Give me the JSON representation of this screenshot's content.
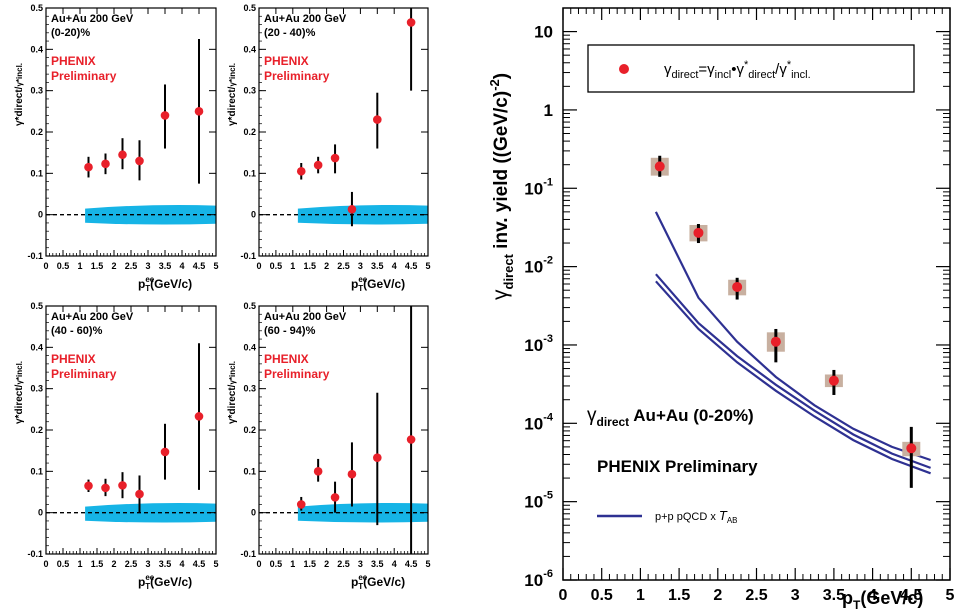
{
  "chart_data": [
    {
      "type": "scatter",
      "title": "Au+Au 200 GeV",
      "subtitle": "(0-20)%",
      "annotation": [
        "PHENIX",
        "Preliminary"
      ],
      "ylabel_main": "γ*direct",
      "ylabel_sep": "/",
      "ylabel_sub": "γ*incl.",
      "xlabel_main": "p",
      "xlabel_sub": "T",
      "xlabel_sup": "ee",
      "xlabel_unit": "(GeV/c)",
      "xlim": [
        0,
        5
      ],
      "ylim": [
        -0.1,
        0.5
      ],
      "x_ticks": [
        "0",
        "0.5",
        "1",
        "1.5",
        "2",
        "2.5",
        "3",
        "3.5",
        "4",
        "4.5",
        "5"
      ],
      "y_ticks": [
        "-0.1",
        "0",
        "0.1",
        "0.2",
        "0.3",
        "0.4",
        "0.5"
      ],
      "points": [
        {
          "x": 1.25,
          "y": 0.115,
          "lo": 0.09,
          "hi": 0.14
        },
        {
          "x": 1.75,
          "y": 0.123,
          "lo": 0.098,
          "hi": 0.148
        },
        {
          "x": 2.25,
          "y": 0.145,
          "lo": 0.11,
          "hi": 0.185
        },
        {
          "x": 2.75,
          "y": 0.13,
          "lo": 0.083,
          "hi": 0.18
        },
        {
          "x": 3.5,
          "y": 0.24,
          "lo": 0.16,
          "hi": 0.315
        },
        {
          "x": 4.5,
          "y": 0.25,
          "lo": 0.075,
          "hi": 0.425
        }
      ],
      "band": {
        "x": [
          1.0,
          5.0
        ],
        "half": 0.022
      }
    },
    {
      "type": "scatter",
      "title": "Au+Au 200 GeV",
      "subtitle": "(20 - 40)%",
      "annotation": [
        "PHENIX",
        "Preliminary"
      ],
      "ylabel_main": "γ*direct",
      "ylabel_sep": "/",
      "ylabel_sub": "γ*incl.",
      "xlabel_main": "p",
      "xlabel_sub": "T",
      "xlabel_sup": "ee",
      "xlabel_unit": "(GeV/c)",
      "xlim": [
        0,
        5
      ],
      "ylim": [
        -0.1,
        0.5
      ],
      "x_ticks": [
        "0",
        "0.5",
        "1",
        "1.5",
        "2",
        "2.5",
        "3",
        "3.5",
        "4",
        "4.5",
        "5"
      ],
      "y_ticks": [
        "-0.1",
        "0",
        "0.1",
        "0.2",
        "0.3",
        "0.4",
        "0.5"
      ],
      "points": [
        {
          "x": 1.25,
          "y": 0.105,
          "lo": 0.085,
          "hi": 0.125
        },
        {
          "x": 1.75,
          "y": 0.12,
          "lo": 0.1,
          "hi": 0.14
        },
        {
          "x": 2.25,
          "y": 0.137,
          "lo": 0.1,
          "hi": 0.17
        },
        {
          "x": 2.75,
          "y": 0.013,
          "lo": -0.028,
          "hi": 0.055
        },
        {
          "x": 3.5,
          "y": 0.23,
          "lo": 0.16,
          "hi": 0.295
        },
        {
          "x": 4.5,
          "y": 0.465,
          "lo": 0.3,
          "hi": 0.5
        }
      ],
      "band": {
        "x": [
          1.0,
          5.0
        ],
        "half": 0.022
      }
    },
    {
      "type": "scatter",
      "title": "Au+Au 200 GeV",
      "subtitle": "(40 - 60)%",
      "annotation": [
        "PHENIX",
        "Preliminary"
      ],
      "ylabel_main": "γ*direct",
      "ylabel_sep": "/",
      "ylabel_sub": "γ*incl.",
      "xlabel_main": "p",
      "xlabel_sub": "T",
      "xlabel_sup": "ee",
      "xlabel_unit": "(GeV/c)",
      "xlim": [
        0,
        5
      ],
      "ylim": [
        -0.1,
        0.5
      ],
      "x_ticks": [
        "0",
        "0.5",
        "1",
        "1.5",
        "2",
        "2.5",
        "3",
        "3.5",
        "4",
        "4.5",
        "5"
      ],
      "y_ticks": [
        "-0.1",
        "0",
        "0.1",
        "0.2",
        "0.3",
        "0.4",
        "0.5"
      ],
      "points": [
        {
          "x": 1.25,
          "y": 0.065,
          "lo": 0.05,
          "hi": 0.08
        },
        {
          "x": 1.75,
          "y": 0.06,
          "lo": 0.04,
          "hi": 0.082
        },
        {
          "x": 2.25,
          "y": 0.066,
          "lo": 0.035,
          "hi": 0.098
        },
        {
          "x": 2.75,
          "y": 0.045,
          "lo": 0.0,
          "hi": 0.09
        },
        {
          "x": 3.5,
          "y": 0.147,
          "lo": 0.08,
          "hi": 0.215
        },
        {
          "x": 4.5,
          "y": 0.233,
          "lo": 0.055,
          "hi": 0.41
        }
      ],
      "band": {
        "x": [
          1.0,
          5.0
        ],
        "half": 0.022
      }
    },
    {
      "type": "scatter",
      "title": "Au+Au 200 GeV",
      "subtitle": "(60 - 94)%",
      "annotation": [
        "PHENIX",
        "Preliminary"
      ],
      "ylabel_main": "γ*direct",
      "ylabel_sep": "/",
      "ylabel_sub": "γ*incl.",
      "xlabel_main": "p",
      "xlabel_sub": "T",
      "xlabel_sup": "ee",
      "xlabel_unit": "(GeV/c)",
      "xlim": [
        0,
        5
      ],
      "ylim": [
        -0.1,
        0.5
      ],
      "x_ticks": [
        "0",
        "0.5",
        "1",
        "1.5",
        "2",
        "2.5",
        "3",
        "3.5",
        "4",
        "4.5",
        "5"
      ],
      "y_ticks": [
        "-0.1",
        "0",
        "0.1",
        "0.2",
        "0.3",
        "0.4",
        "0.5"
      ],
      "points": [
        {
          "x": 1.25,
          "y": 0.02,
          "lo": 0.005,
          "hi": 0.038
        },
        {
          "x": 1.75,
          "y": 0.1,
          "lo": 0.075,
          "hi": 0.13
        },
        {
          "x": 2.25,
          "y": 0.037,
          "lo": 0.0,
          "hi": 0.075
        },
        {
          "x": 2.75,
          "y": 0.093,
          "lo": 0.015,
          "hi": 0.17
        },
        {
          "x": 3.5,
          "y": 0.133,
          "lo": -0.03,
          "hi": 0.29
        },
        {
          "x": 4.5,
          "y": 0.177,
          "lo": -0.1,
          "hi": 0.5
        }
      ],
      "band": {
        "x": [
          1.0,
          5.0
        ],
        "half": 0.022
      }
    },
    {
      "type": "scatter",
      "yscale": "log",
      "xlim": [
        0,
        5
      ],
      "ylim": [
        1e-06,
        20
      ],
      "x_ticks": [
        "0",
        "0.5",
        "1",
        "1.5",
        "2",
        "2.5",
        "3",
        "3.5",
        "4",
        "4.5",
        "5"
      ],
      "y_ticks": [
        {
          "base": "10",
          "exp": "-6",
          "value": 1e-06
        },
        {
          "base": "10",
          "exp": "-5",
          "value": 1e-05
        },
        {
          "base": "10",
          "exp": "-4",
          "value": 0.0001
        },
        {
          "base": "10",
          "exp": "-3",
          "value": 0.001
        },
        {
          "base": "10",
          "exp": "-2",
          "value": 0.01
        },
        {
          "base": "10",
          "exp": "-1",
          "value": 0.1
        },
        {
          "base": "1",
          "exp": "",
          "value": 1
        },
        {
          "base": "10",
          "exp": "",
          "value": 10
        }
      ],
      "ylabel_gamma": "γ",
      "ylabel_sub": "direct",
      "ylabel_rest": " inv. yield ((GeV/c)",
      "ylabel_sup": "-2",
      "ylabel_close": ")",
      "xlabel_main": "p",
      "xlabel_sub": "T",
      "xlabel_unit": "(GeV/c)",
      "legend": {
        "placement": "top-right",
        "g1": "γ",
        "s1": "direct",
        "eq": "=",
        "g2": "γ",
        "s2": "incl",
        "dot": "•",
        "g3": "γ",
        "sup3": "*",
        "s3": "direct",
        "slash": "/",
        "g4": "γ",
        "sup4": "*",
        "s4": "incl."
      },
      "label_gamma": "γ",
      "label_sub": "direct",
      "label_text": "Au+Au (0-20%)",
      "annotation": "PHENIX Preliminary",
      "curve_legend": {
        "text": "p+p pQCD x ",
        "italic": "T",
        "sub": "AB"
      },
      "points": [
        {
          "x": 1.25,
          "y": 0.19,
          "lo": 0.14,
          "hi": 0.26,
          "syslo": 0.145,
          "syshi": 0.245
        },
        {
          "x": 1.75,
          "y": 0.027,
          "lo": 0.02,
          "hi": 0.035,
          "syslo": 0.021,
          "syshi": 0.034
        },
        {
          "x": 2.25,
          "y": 0.0055,
          "lo": 0.0038,
          "hi": 0.0072,
          "syslo": 0.0043,
          "syshi": 0.0068
        },
        {
          "x": 2.75,
          "y": 0.0011,
          "lo": 0.0006,
          "hi": 0.0016,
          "syslo": 0.00082,
          "syshi": 0.00145
        },
        {
          "x": 3.5,
          "y": 0.00035,
          "lo": 0.00023,
          "hi": 0.00048,
          "syslo": 0.00029,
          "syshi": 0.00042
        },
        {
          "x": 4.5,
          "y": 4.8e-05,
          "lo": 1.5e-05,
          "hi": 9e-05,
          "syslo": 3.8e-05,
          "syshi": 5.8e-05
        }
      ],
      "curves": [
        {
          "x": [
            1.2,
            1.75,
            2.25,
            2.75,
            3.25,
            3.75,
            4.25,
            4.75
          ],
          "y": [
            0.05,
            0.004,
            0.0011,
            0.00039,
            0.00017,
            8.5e-05,
            5e-05,
            3.4e-05
          ]
        },
        {
          "x": [
            1.2,
            1.75,
            2.25,
            2.75,
            3.25,
            3.75,
            4.25,
            4.75
          ],
          "y": [
            0.008,
            0.0019,
            0.00072,
            0.00031,
            0.000145,
            7.2e-05,
            4.1e-05,
            2.7e-05
          ]
        },
        {
          "x": [
            1.2,
            1.75,
            2.25,
            2.75,
            3.25,
            3.75,
            4.25,
            4.75
          ],
          "y": [
            0.0065,
            0.0016,
            0.0006,
            0.00026,
            0.000122,
            6.1e-05,
            3.5e-05,
            2.3e-05
          ]
        }
      ]
    }
  ],
  "colors": {
    "marker": "#e8202a",
    "band": "#16b4e6",
    "curve": "#2e3192",
    "sys": "#c8b0a0",
    "red_text": "#e8202a"
  }
}
